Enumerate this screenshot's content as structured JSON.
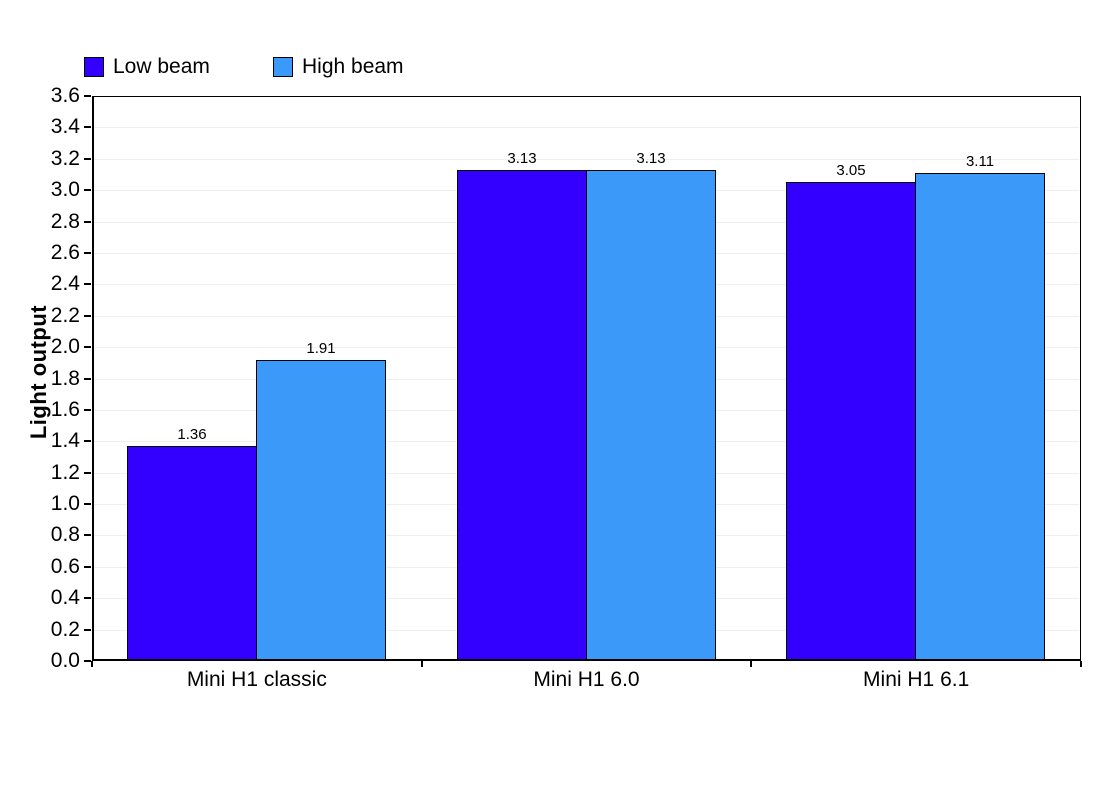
{
  "chart_data": {
    "type": "bar",
    "title": "",
    "xlabel": "",
    "ylabel": "Light output",
    "categories": [
      "Mini H1 classic",
      "Mini H1 6.0",
      "Mini H1 6.1"
    ],
    "series": [
      {
        "name": "Low beam",
        "color": "#3300FF",
        "values": [
          1.36,
          3.13,
          3.05
        ]
      },
      {
        "name": "High beam",
        "color": "#3B99FA",
        "values": [
          1.91,
          3.13,
          3.11
        ]
      }
    ],
    "ylim": [
      0,
      3.6
    ],
    "ytick_step": 0.2,
    "ytick_decimals": 1,
    "value_label_decimals": 2,
    "grid": "horizontal",
    "gridline_color": "#EFEFEF",
    "axis_color": "#000000",
    "bar_border_color": "#000000",
    "background_color": "#FFFFFF",
    "legend_position": "top-left"
  }
}
